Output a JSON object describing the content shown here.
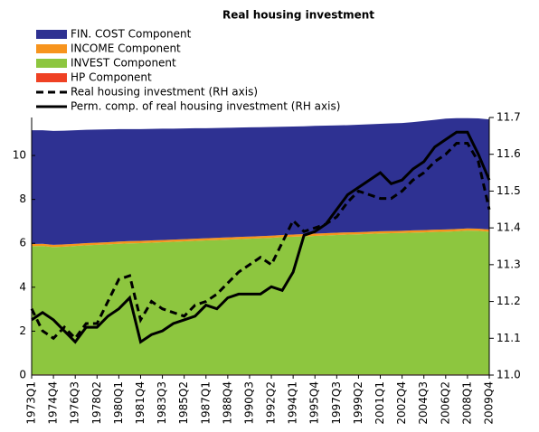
{
  "chart_data": {
    "type": "area",
    "title": "Real housing investment",
    "categories": [
      "1973Q1",
      null,
      "1974Q4",
      null,
      "1976Q3",
      null,
      "1978Q2",
      null,
      "1980Q1",
      null,
      "1981Q4",
      null,
      "1983Q3",
      null,
      "1985Q2",
      null,
      "1987Q1",
      null,
      "1988Q4",
      null,
      "1990Q3",
      null,
      "1992Q2",
      null,
      "1994Q1",
      null,
      "1995Q4",
      null,
      "1997Q3",
      null,
      "1999Q2",
      null,
      "2001Q1",
      null,
      "2002Q4",
      null,
      "2004Q3",
      null,
      "2006Q2",
      null,
      "2008Q1",
      null,
      "2009Q4"
    ],
    "series": [
      {
        "name": "FIN. COST Component",
        "type": "area",
        "color": "#2e3192",
        "values": [
          5.18,
          5.17,
          5.19,
          5.18,
          5.17,
          5.16,
          5.15,
          5.14,
          5.12,
          5.1,
          5.09,
          5.08,
          5.07,
          5.05,
          5.04,
          5.03,
          5.01,
          5.0,
          4.99,
          4.98,
          4.97,
          4.96,
          4.95,
          4.93,
          4.92,
          4.91,
          4.91,
          4.9,
          4.89,
          4.88,
          4.89,
          4.89,
          4.89,
          4.9,
          4.91,
          4.93,
          4.97,
          5.0,
          5.05,
          5.05,
          5.02,
          5.02,
          5.01
        ]
      },
      {
        "name": "INCOME Component",
        "type": "area",
        "color": "#f7941d",
        "values": [
          0.1,
          0.1,
          0.1,
          0.1,
          0.1,
          0.1,
          0.1,
          0.1,
          0.1,
          0.1,
          0.1,
          0.1,
          0.1,
          0.1,
          0.1,
          0.1,
          0.1,
          0.1,
          0.1,
          0.1,
          0.1,
          0.1,
          0.1,
          0.1,
          0.1,
          0.1,
          0.1,
          0.1,
          0.1,
          0.1,
          0.1,
          0.1,
          0.1,
          0.1,
          0.1,
          0.1,
          0.1,
          0.1,
          0.1,
          0.1,
          0.1,
          0.1,
          0.1
        ]
      },
      {
        "name": "INVEST Component",
        "type": "area",
        "color": "#8dc63f",
        "values": [
          5.84,
          5.85,
          5.8,
          5.82,
          5.85,
          5.88,
          5.9,
          5.92,
          5.95,
          5.97,
          5.98,
          6.0,
          6.02,
          6.04,
          6.06,
          6.08,
          6.1,
          6.12,
          6.14,
          6.16,
          6.18,
          6.2,
          6.22,
          6.25,
          6.27,
          6.29,
          6.31,
          6.33,
          6.35,
          6.37,
          6.38,
          6.4,
          6.42,
          6.43,
          6.44,
          6.46,
          6.47,
          6.49,
          6.5,
          6.52,
          6.55,
          6.54,
          6.5
        ]
      },
      {
        "name": "HP Component",
        "type": "area",
        "color": "#ef4123",
        "values": [
          0.03,
          0.03,
          0.03,
          0.03,
          0.03,
          0.03,
          0.03,
          0.03,
          0.03,
          0.03,
          0.03,
          0.03,
          0.03,
          0.03,
          0.03,
          0.03,
          0.03,
          0.03,
          0.03,
          0.03,
          0.03,
          0.03,
          0.03,
          0.03,
          0.03,
          0.03,
          0.03,
          0.03,
          0.03,
          0.03,
          0.03,
          0.03,
          0.03,
          0.03,
          0.03,
          0.03,
          0.03,
          0.03,
          0.03,
          0.03,
          0.03,
          0.03,
          0.03
        ]
      },
      {
        "name": "Real housing investment (RH axis)",
        "type": "line",
        "axis": "y2",
        "linestyle": "dashed",
        "color": "#000000",
        "values": [
          11.18,
          11.12,
          11.1,
          11.13,
          11.1,
          11.14,
          11.14,
          11.2,
          11.26,
          11.27,
          11.15,
          11.2,
          11.18,
          11.17,
          11.16,
          11.19,
          11.2,
          11.22,
          11.25,
          11.28,
          11.3,
          11.32,
          11.3,
          11.36,
          11.42,
          11.39,
          11.4,
          11.41,
          11.43,
          11.47,
          11.5,
          11.49,
          11.48,
          11.48,
          11.5,
          11.53,
          11.55,
          11.58,
          11.6,
          11.63,
          11.63,
          11.58,
          11.45
        ]
      },
      {
        "name": "Perm. comp. of real housing investment (RH axis)",
        "type": "line",
        "axis": "y2",
        "linestyle": "solid",
        "color": "#000000",
        "values": [
          11.15,
          11.17,
          11.15,
          11.12,
          11.09,
          11.13,
          11.13,
          11.16,
          11.18,
          11.21,
          11.09,
          11.11,
          11.12,
          11.14,
          11.15,
          11.16,
          11.19,
          11.18,
          11.21,
          11.22,
          11.22,
          11.22,
          11.24,
          11.23,
          11.28,
          11.38,
          11.39,
          11.41,
          11.45,
          11.49,
          11.51,
          11.53,
          11.55,
          11.52,
          11.53,
          11.56,
          11.58,
          11.62,
          11.64,
          11.66,
          11.66,
          11.6,
          11.53
        ]
      }
    ],
    "ylim": [
      0,
      11.73
    ],
    "yticks": [
      0,
      2,
      4,
      6,
      8,
      10
    ],
    "y2lim": [
      11.0,
      11.7
    ],
    "y2ticks": [
      {
        "value": 11.0,
        "label": "11.0"
      },
      11.1,
      11.2,
      11.3,
      11.4,
      11.5,
      11.6,
      11.7
    ],
    "legend": "top-left"
  }
}
